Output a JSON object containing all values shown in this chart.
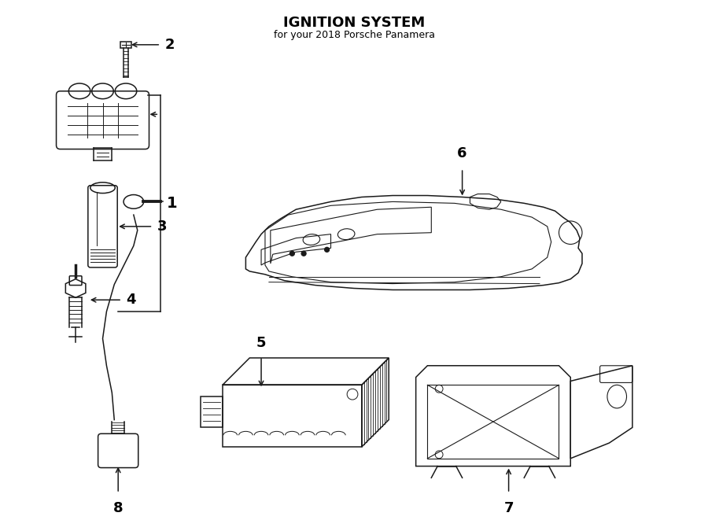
{
  "title": "IGNITION SYSTEM",
  "subtitle": "for your 2018 Porsche Panamera",
  "bg_color": "#ffffff",
  "line_color": "#1a1a1a",
  "text_color": "#000000",
  "fig_width": 9.0,
  "fig_height": 6.61,
  "dpi": 100
}
